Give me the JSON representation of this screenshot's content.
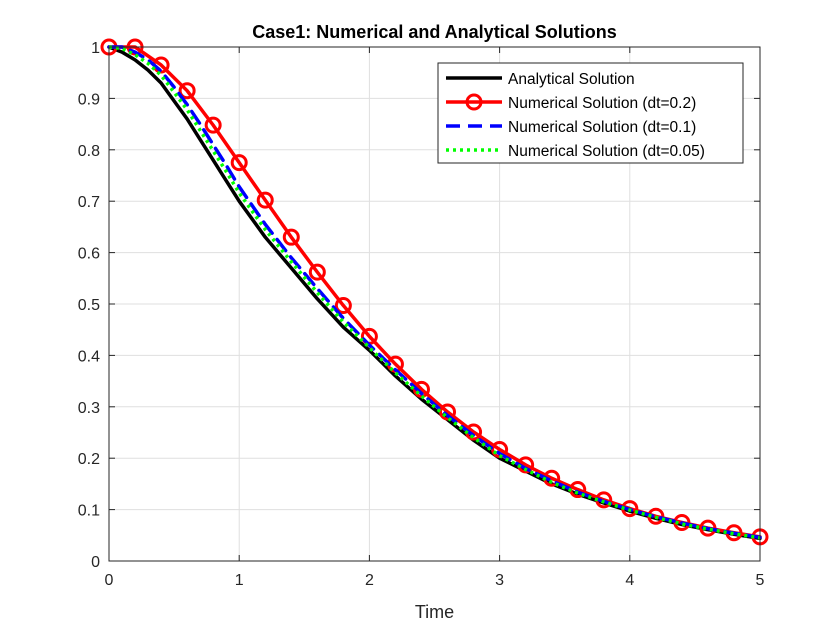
{
  "chart_data": {
    "type": "line",
    "title": "Case1: Numerical and Analytical Solutions",
    "xlabel": "Time",
    "ylabel": "",
    "xlim": [
      0,
      5
    ],
    "ylim": [
      0,
      1
    ],
    "xticks": [
      0,
      1,
      2,
      3,
      4,
      5
    ],
    "xtick_labels": [
      "0",
      "1",
      "2",
      "3",
      "4",
      "5"
    ],
    "yticks": [
      0,
      0.1,
      0.2,
      0.3,
      0.4,
      0.5,
      0.6,
      0.7,
      0.8,
      0.9,
      1
    ],
    "ytick_labels": [
      "0",
      "0.1",
      "0.2",
      "0.3",
      "0.4",
      "0.5",
      "0.6",
      "0.7",
      "0.8",
      "0.9",
      "1"
    ],
    "grid": true,
    "legend_position": "top-right",
    "series": [
      {
        "name": "Analytical Solution",
        "color": "#000000",
        "style": "solid",
        "marker": "none",
        "x": [
          0,
          0.1,
          0.2,
          0.3,
          0.4,
          0.5,
          0.6,
          0.7,
          0.8,
          0.9,
          1.0,
          1.2,
          1.4,
          1.6,
          1.8,
          2.0,
          2.2,
          2.4,
          2.6,
          2.8,
          3.0,
          3.2,
          3.4,
          3.6,
          3.8,
          4.0,
          4.2,
          4.4,
          4.6,
          4.8,
          5.0
        ],
        "y": [
          1.0,
          0.99,
          0.975,
          0.955,
          0.93,
          0.895,
          0.86,
          0.82,
          0.78,
          0.74,
          0.7,
          0.63,
          0.57,
          0.51,
          0.455,
          0.41,
          0.36,
          0.315,
          0.275,
          0.235,
          0.2,
          0.175,
          0.15,
          0.13,
          0.113,
          0.097,
          0.083,
          0.071,
          0.061,
          0.052,
          0.044
        ]
      },
      {
        "name": "Numerical Solution (dt=0.2)",
        "color": "#ff0000",
        "style": "solid",
        "marker": "circle",
        "x": [
          0,
          0.2,
          0.4,
          0.6,
          0.8,
          1.0,
          1.2,
          1.4,
          1.6,
          1.8,
          2.0,
          2.2,
          2.4,
          2.6,
          2.8,
          3.0,
          3.2,
          3.4,
          3.6,
          3.8,
          4.0,
          4.2,
          4.4,
          4.6,
          4.8,
          5.0
        ],
        "y": [
          1.0,
          1.0,
          0.965,
          0.915,
          0.848,
          0.775,
          0.702,
          0.63,
          0.562,
          0.497,
          0.437,
          0.383,
          0.334,
          0.29,
          0.251,
          0.217,
          0.187,
          0.161,
          0.139,
          0.119,
          0.102,
          0.087,
          0.075,
          0.064,
          0.055,
          0.047
        ]
      },
      {
        "name": "Numerical Solution (dt=0.1)",
        "color": "#0000ff",
        "style": "dashed",
        "marker": "none",
        "x": [
          0,
          0.1,
          0.2,
          0.3,
          0.4,
          0.5,
          0.6,
          0.7,
          0.8,
          0.9,
          1.0,
          1.2,
          1.4,
          1.6,
          1.8,
          2.0,
          2.2,
          2.4,
          2.6,
          2.8,
          3.0,
          3.2,
          3.4,
          3.6,
          3.8,
          4.0,
          4.2,
          4.4,
          4.6,
          4.8,
          5.0
        ],
        "y": [
          1.0,
          1.0,
          0.99,
          0.975,
          0.953,
          0.922,
          0.888,
          0.85,
          0.81,
          0.77,
          0.728,
          0.655,
          0.59,
          0.53,
          0.472,
          0.42,
          0.372,
          0.326,
          0.283,
          0.244,
          0.209,
          0.18,
          0.156,
          0.134,
          0.116,
          0.1,
          0.086,
          0.074,
          0.063,
          0.054,
          0.046
        ]
      },
      {
        "name": "Numerical Solution (dt=0.05)",
        "color": "#00ff00",
        "style": "dotted",
        "marker": "none",
        "x": [
          0,
          0.1,
          0.2,
          0.3,
          0.4,
          0.5,
          0.6,
          0.7,
          0.8,
          0.9,
          1.0,
          1.2,
          1.4,
          1.6,
          1.8,
          2.0,
          2.2,
          2.4,
          2.6,
          2.8,
          3.0,
          3.2,
          3.4,
          3.6,
          3.8,
          4.0,
          4.2,
          4.4,
          4.6,
          4.8,
          5.0
        ],
        "y": [
          1.0,
          0.997,
          0.985,
          0.968,
          0.945,
          0.912,
          0.878,
          0.838,
          0.798,
          0.758,
          0.716,
          0.645,
          0.582,
          0.522,
          0.465,
          0.415,
          0.366,
          0.321,
          0.279,
          0.24,
          0.205,
          0.178,
          0.153,
          0.132,
          0.115,
          0.099,
          0.085,
          0.072,
          0.062,
          0.053,
          0.045
        ]
      }
    ]
  }
}
